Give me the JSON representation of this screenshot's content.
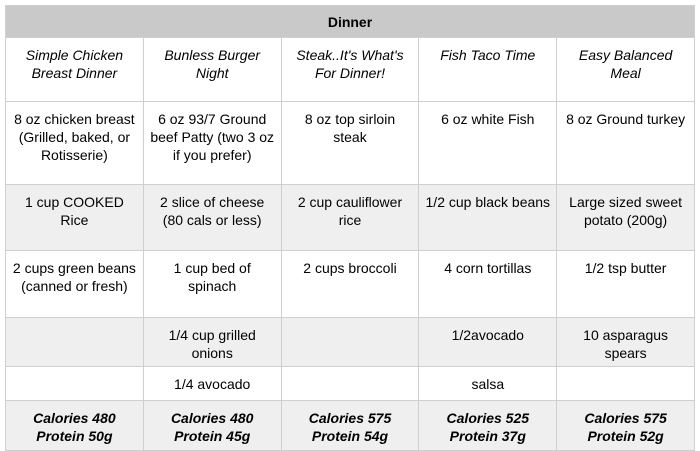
{
  "table": {
    "title": "Dinner",
    "meals": [
      "Simple Chicken Breast Dinner",
      "Bunless Burger Night",
      "Steak..It's What's For Dinner!",
      "Fish Taco Time",
      "Easy Balanced Meal"
    ],
    "rows": [
      [
        "8 oz chicken breast (Grilled, baked, or Rotisserie)",
        "6 oz 93/7 Ground beef Patty (two 3 oz if you prefer)",
        "8 oz top sirloin steak",
        "6 oz white Fish",
        "8 oz Ground turkey"
      ],
      [
        "1 cup COOKED Rice",
        "2 slice of cheese (80 cals or less)",
        "2 cup cauliflower rice",
        "1/2 cup black beans",
        "Large sized sweet potato (200g)"
      ],
      [
        "2 cups green beans (canned or fresh)",
        "1 cup bed of spinach",
        "2 cups broccoli",
        "4 corn tortillas",
        "1/2 tsp butter"
      ],
      [
        "",
        "1/4 cup grilled onions",
        "",
        "1/2avocado",
        "10 asparagus spears"
      ],
      [
        "",
        "1/4 avocado",
        "",
        "salsa",
        ""
      ]
    ],
    "calories": [
      "Calories 480",
      "Calories 480",
      "Calories 575",
      "Calories 525",
      "Calories 575"
    ],
    "protein": [
      "Protein 50g",
      "Protein 45g",
      "Protein 54g",
      "Protein 37g",
      "Protein 52g"
    ]
  },
  "colors": {
    "header_bg": "#c9c9c9",
    "stripe_bg": "#efefef",
    "border": "#cfcfcf"
  }
}
